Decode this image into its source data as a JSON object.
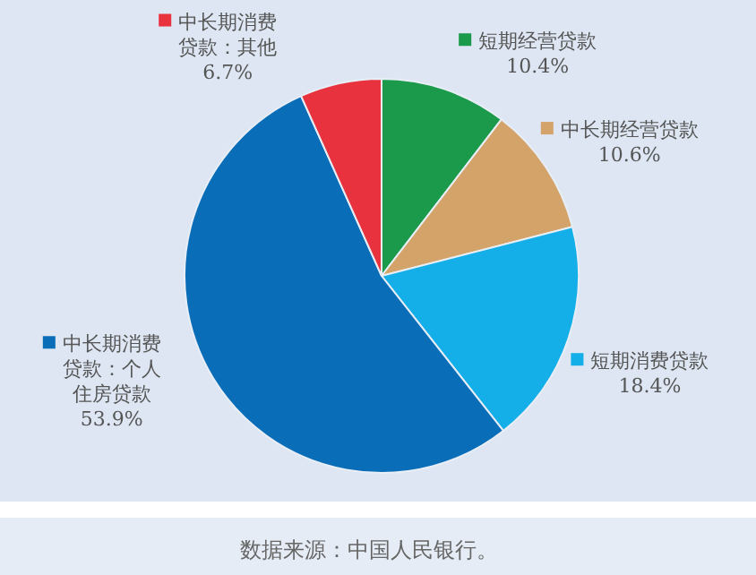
{
  "chart_data": {
    "type": "pie",
    "categories": [
      "短期经营贷款",
      "中长期经营贷款",
      "短期消费贷款",
      "中长期消费贷款：个人住房贷款",
      "中长期消费贷款：其他"
    ],
    "values": [
      10.4,
      10.6,
      18.4,
      53.9,
      6.7
    ],
    "value_labels": [
      "10.4%",
      "10.6%",
      "18.4%",
      "53.9%",
      "6.7%"
    ],
    "colors": [
      "#1a9a4a",
      "#d4a36a",
      "#14aee8",
      "#0a6db8",
      "#e8323e"
    ],
    "legend": "right",
    "annotations": [
      "数据来源：中国人民银行。"
    ]
  }
}
